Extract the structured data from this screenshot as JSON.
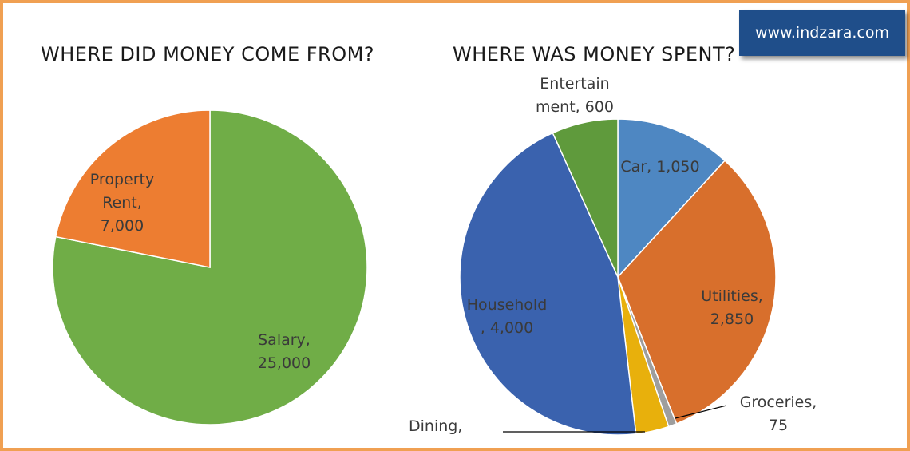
{
  "watermark": "www.indzara.com",
  "chart_data": [
    {
      "type": "pie",
      "title": "WHERE DID MONEY COME FROM?",
      "slices": [
        {
          "label_lines": [
            "Salary,",
            "25,000"
          ],
          "category": "Salary",
          "value": 25000,
          "color": "#70ad47"
        },
        {
          "label_lines": [
            "Property",
            "Rent,",
            "7,000"
          ],
          "category": "Property Rent",
          "value": 7000,
          "color": "#ed7d31"
        }
      ]
    },
    {
      "type": "pie",
      "title": "WHERE WAS MONEY SPENT?",
      "slices": [
        {
          "label_lines": [
            "Car, 1,050"
          ],
          "category": "Car",
          "value": 1050,
          "color": "#4e87c2"
        },
        {
          "label_lines": [
            "Utilities,",
            "2,850"
          ],
          "category": "Utilities",
          "value": 2850,
          "color": "#d86f2c"
        },
        {
          "label_lines": [
            "Groceries,",
            "75"
          ],
          "category": "Groceries",
          "value": 75,
          "color": "#9e9e9e"
        },
        {
          "label_lines": [
            "Dining,"
          ],
          "category": "Dining",
          "value": 300,
          "color": "#e8b00c"
        },
        {
          "label_lines": [
            "Household",
            ", 4,000"
          ],
          "category": "Household",
          "value": 4000,
          "color": "#3a62ae"
        },
        {
          "label_lines": [
            "Entertain",
            "ment, 600"
          ],
          "category": "Entertainment",
          "value": 600,
          "color": "#5f9a3c"
        }
      ]
    }
  ]
}
